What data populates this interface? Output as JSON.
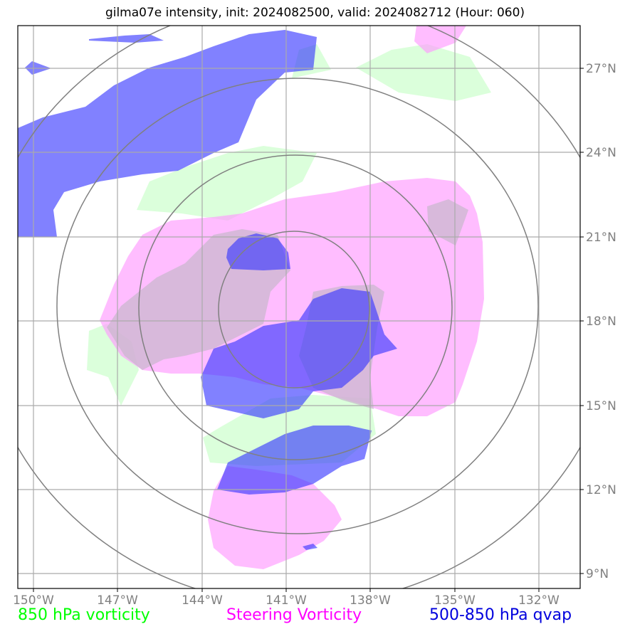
{
  "title": "gilma07e intensity, init: 2024082500, valid: 2024082712 (Hour: 060)",
  "axes": {
    "lon_labels": [
      "150°W",
      "147°W",
      "144°W",
      "141°W",
      "138°W",
      "135°W",
      "132°W"
    ],
    "lat_labels": [
      "27°N",
      "24°N",
      "21°N",
      "18°N",
      "15°N",
      "12°N",
      "9°N"
    ]
  },
  "legend": {
    "green": {
      "label": "850 hPa vorticity",
      "color": "#00ff00"
    },
    "pink": {
      "label": "Steering Vorticity",
      "color": "#ff00ff"
    },
    "blue": {
      "label": "500-850 hPa qvap",
      "color": "#0000dd"
    }
  },
  "colors": {
    "green_fill": "#ccffcc",
    "pink_fill": "#ff99ff",
    "blue_fill": "#3333ff",
    "gridline": "#aaaaaa",
    "range_ring": "#808080"
  }
}
